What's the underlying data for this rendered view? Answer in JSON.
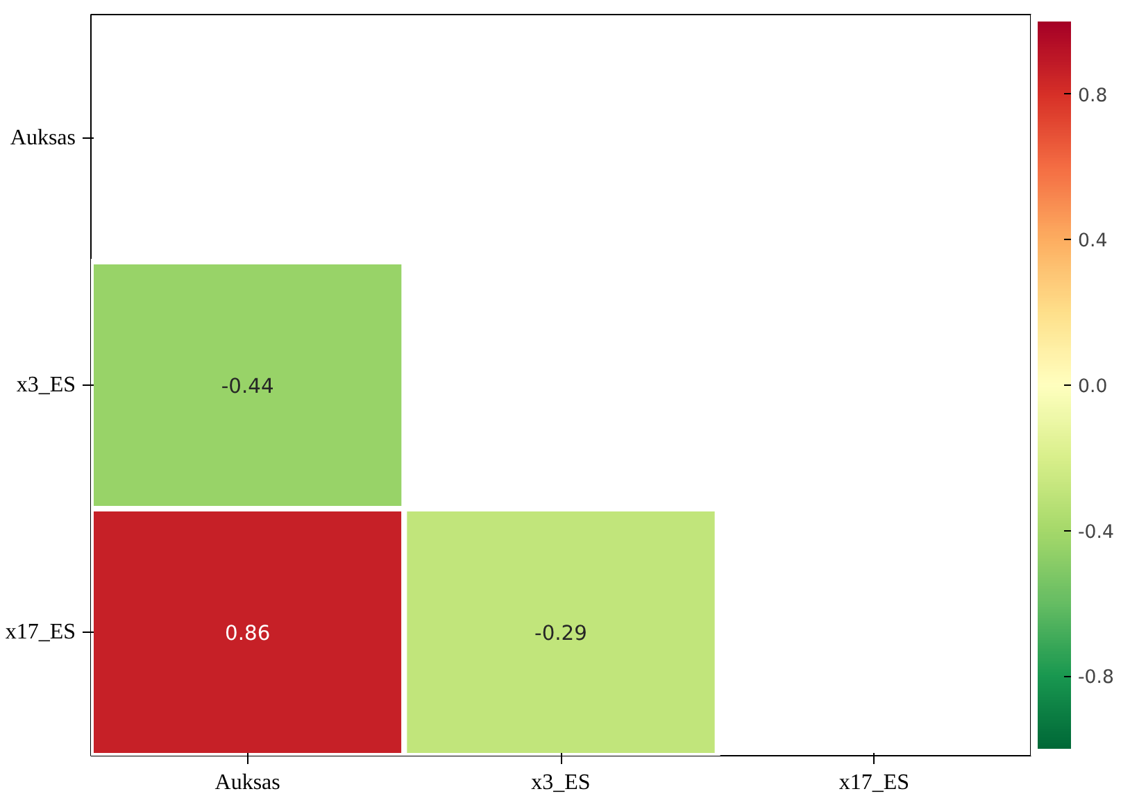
{
  "chart_data": {
    "type": "heatmap",
    "categories": [
      "Auksas",
      "x3_ES",
      "x17_ES"
    ],
    "y_categories": [
      "Auksas",
      "x3_ES",
      "x17_ES"
    ],
    "cells": [
      [
        null,
        null,
        null
      ],
      [
        -0.44,
        null,
        null
      ],
      [
        0.86,
        -0.29,
        null
      ]
    ],
    "clim": [
      -1,
      1
    ],
    "cticks": [
      -0.8,
      -0.4,
      {
        "value": 0,
        "label": "0.0"
      },
      0.4,
      0.8
    ],
    "data_labels": true
  }
}
